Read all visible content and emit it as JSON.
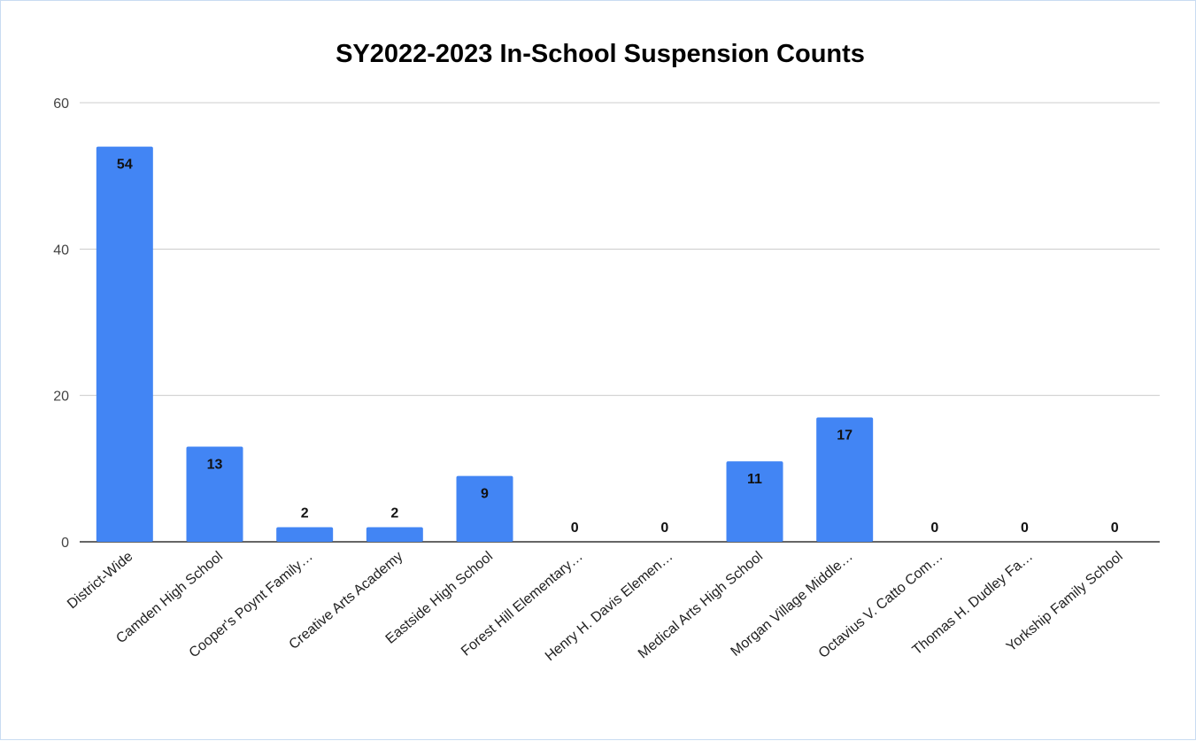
{
  "chart_data": {
    "type": "bar",
    "title": "SY2022-2023 In-School Suspension Counts",
    "xlabel": "",
    "ylabel": "",
    "categories": [
      "District-Wide",
      "Camden High School",
      "Cooper's Poynt Family…",
      "Creative Arts Academy",
      "Eastside High School",
      "Forest Hill Elementary…",
      "Henry H. Davis Elemen…",
      "Medical Arts High School",
      "Morgan Village Middle…",
      "Octavius V. Catto Com…",
      "Thomas H. Dudley Fa…",
      "Yorkship Family School"
    ],
    "values": [
      54,
      13,
      2,
      2,
      9,
      0,
      0,
      11,
      17,
      0,
      0,
      0
    ],
    "data_labels": [
      "54",
      "13",
      "2",
      "2",
      "9",
      "0",
      "0",
      "11",
      "17",
      "0",
      "0",
      "0"
    ],
    "ylim": [
      0,
      60
    ],
    "yticks": [
      0,
      20,
      40,
      60
    ],
    "ytick_labels": [
      "0",
      "20",
      "40",
      "60"
    ],
    "grid": true,
    "legend": "none",
    "colors": {
      "bar": "#4285f4",
      "grid": "#cccccc",
      "axis": "#333333"
    }
  }
}
